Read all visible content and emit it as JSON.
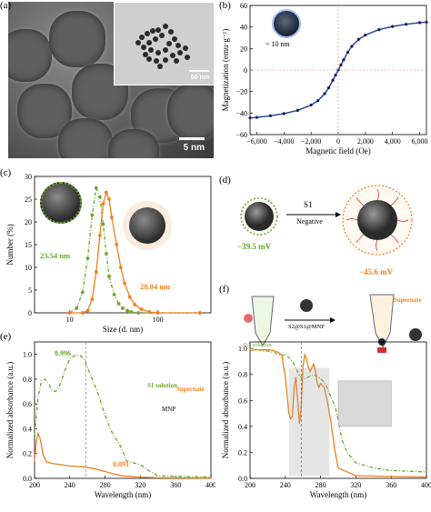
{
  "panels": {
    "a": {
      "label": "(a)",
      "scale_main": "5 nm",
      "scale_inset": "50 nm"
    },
    "b": {
      "label": "(b)",
      "inset_size": "~ 10 nm"
    },
    "c": {
      "label": "(c)",
      "ann_left": "23.54 nm",
      "ann_right": "28.04 nm"
    },
    "d": {
      "label": "(d)",
      "arrow_top": "S1",
      "arrow_bottom": "Negative",
      "zeta_left": "−39.5 mV",
      "zeta_right": "−45.6 mV"
    },
    "e": {
      "label": "(e)",
      "solution": "S1  solution",
      "mnp": "MNP",
      "supernate": "Supernate",
      "val_top": "0.996",
      "val_bottom": "0.091"
    },
    "f": {
      "label": "(f)",
      "da_solution": "DA  solution",
      "reagent": "S2@S1@MNP",
      "supernate": "Supernate"
    }
  },
  "colors": {
    "green": "#6aa82a",
    "orange": "#f07f1d",
    "blue": "#1f3fa0",
    "dark": "#1a1a2e"
  },
  "chart_data": [
    {
      "panel": "b",
      "type": "line",
      "xlabel": "Magnetic  field (Oe)",
      "ylabel": "Magnetization (emu·g⁻¹)",
      "xlim": [
        -6500,
        6500
      ],
      "ylim": [
        -60,
        60
      ],
      "xticks": [
        "−6,000",
        "−4,000",
        "−2,000",
        "0",
        "2,000",
        "4,000",
        "6,000"
      ],
      "yticks": [
        "−60",
        "−40",
        "−20",
        "0",
        "20",
        "40",
        "60"
      ],
      "x": [
        -6500,
        -6000,
        -5000,
        -4000,
        -3000,
        -2000,
        -1500,
        -1000,
        -700,
        -400,
        -200,
        0,
        200,
        400,
        700,
        1000,
        1500,
        2000,
        3000,
        4000,
        5000,
        6000,
        6500
      ],
      "y": [
        -44.5,
        -44,
        -42.5,
        -40.5,
        -37.5,
        -32.5,
        -28.5,
        -22,
        -16.5,
        -9.5,
        -4.8,
        0,
        4.8,
        9.5,
        16.5,
        22,
        28.5,
        32.5,
        37.5,
        40.5,
        42.5,
        44,
        44.5
      ]
    },
    {
      "panel": "c",
      "type": "line",
      "xlabel": "Size (d. nm)",
      "ylabel": "Number (%)",
      "xscale": "log",
      "xlim": [
        4,
        400
      ],
      "ylim": [
        0,
        30
      ],
      "xticks": [
        "10",
        "100"
      ],
      "yticks": [
        "0",
        "5",
        "10",
        "15",
        "20",
        "25",
        "30"
      ],
      "series": [
        {
          "x": [
            10,
            12,
            14,
            16,
            18,
            20,
            22,
            24,
            26,
            28,
            32,
            36,
            40,
            45,
            50,
            60,
            100,
            300
          ],
          "y": [
            0,
            1,
            4.5,
            12,
            21.5,
            27.5,
            25.5,
            19.5,
            13,
            8,
            4,
            2,
            1,
            0.5,
            0.2,
            0,
            0,
            0
          ]
        },
        {
          "x": [
            10,
            14,
            16,
            18,
            20,
            22,
            24,
            26,
            28,
            30,
            34,
            38,
            42,
            48,
            55,
            65,
            80,
            100,
            300
          ],
          "y": [
            0,
            0,
            0.5,
            3,
            9,
            17,
            24,
            26.5,
            25,
            21,
            15,
            10,
            6.5,
            3.5,
            1.8,
            0.8,
            0.2,
            0,
            0
          ]
        }
      ]
    },
    {
      "panel": "e",
      "type": "line",
      "xlabel": "Wavelength (nm)",
      "ylabel": "Normalized absorbance (a.u.)",
      "xlim": [
        200,
        400
      ],
      "ylim": [
        0,
        1.1
      ],
      "xticks": [
        "200",
        "240",
        "280",
        "320",
        "360",
        "400"
      ],
      "yticks": [
        "0.0",
        "0.2",
        "0.4",
        "0.6",
        "0.8",
        "1.0"
      ],
      "series": [
        {
          "x": [
            200,
            204,
            208,
            212,
            216,
            220,
            224,
            228,
            232,
            236,
            240,
            244,
            248,
            252,
            256,
            258,
            262,
            266,
            270,
            274,
            278,
            282,
            286,
            290,
            296,
            300,
            304,
            320,
            330,
            340,
            400
          ],
          "y": [
            0.35,
            0.66,
            0.79,
            0.8,
            0.76,
            0.71,
            0.7,
            0.74,
            0.82,
            0.9,
            0.96,
            0.985,
            0.995,
            0.99,
            0.96,
            0.93,
            0.86,
            0.79,
            0.72,
            0.64,
            0.55,
            0.47,
            0.4,
            0.34,
            0.28,
            0.22,
            0.14,
            0.11,
            0.06,
            0.02,
            0.01
          ]
        },
        {
          "x": [
            200,
            202,
            204,
            206,
            208,
            210,
            214,
            220,
            230,
            240,
            250,
            258,
            270,
            280,
            290,
            300,
            320,
            340,
            400
          ],
          "y": [
            0.14,
            0.3,
            0.36,
            0.33,
            0.26,
            0.18,
            0.13,
            0.12,
            0.11,
            0.1,
            0.095,
            0.09,
            0.075,
            0.055,
            0.035,
            0.02,
            0.01,
            0.005,
            0.002
          ]
        }
      ]
    },
    {
      "panel": "f",
      "type": "line",
      "xlabel": "Wavelength (nm)",
      "ylabel": "Normalized absorbance (a.u.)",
      "xlim": [
        200,
        400
      ],
      "ylim": [
        0,
        1.05
      ],
      "xticks": [
        "200",
        "240",
        "280",
        "320",
        "360",
        "400"
      ],
      "yticks": [
        "0.0",
        "0.2",
        "0.4",
        "0.6",
        "0.8",
        "1.0"
      ],
      "series": [
        {
          "x": [
            200,
            204,
            210,
            214,
            220,
            226,
            232,
            236,
            240,
            244,
            248,
            252,
            256,
            260,
            266,
            272,
            278,
            284,
            288,
            292,
            296,
            300,
            304,
            310,
            320,
            330,
            340,
            360,
            400
          ],
          "y": [
            1.0,
            1.0,
            0.99,
            0.98,
            0.98,
            0.97,
            0.96,
            0.94,
            0.96,
            0.93,
            0.9,
            0.85,
            0.79,
            0.76,
            0.78,
            0.8,
            0.78,
            0.74,
            0.69,
            0.62,
            0.56,
            0.45,
            0.3,
            0.2,
            0.12,
            0.1,
            0.08,
            0.06,
            0.05
          ]
        },
        {
          "x": [
            200,
            204,
            210,
            216,
            222,
            228,
            232,
            236,
            240,
            244,
            246,
            248,
            250,
            252,
            256,
            258,
            260,
            262,
            264,
            266,
            268,
            270,
            272,
            274,
            276,
            278,
            280,
            284,
            288,
            292,
            296,
            300,
            320,
            400
          ],
          "y": [
            0.98,
            0.99,
            0.99,
            0.99,
            0.99,
            0.98,
            0.97,
            0.95,
            0.78,
            0.5,
            0.46,
            0.48,
            0.7,
            0.78,
            0.42,
            0.55,
            0.86,
            0.95,
            0.92,
            0.86,
            0.82,
            0.85,
            0.88,
            0.83,
            0.74,
            0.7,
            0.73,
            0.7,
            0.58,
            0.42,
            0.22,
            0.08,
            0.02,
            0.01
          ]
        }
      ]
    }
  ]
}
